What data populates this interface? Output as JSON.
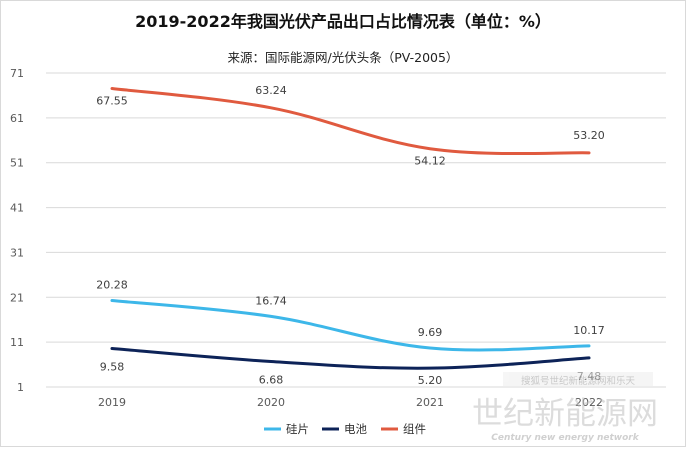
{
  "chart_data": {
    "type": "line",
    "title": "2019-2022年我国光伏产品出口占比情况表（单位：%）",
    "subtitle": "来源：国际能源网/光伏头条（PV-2005）",
    "xlabel": "",
    "ylabel": "",
    "categories": [
      "2019",
      "2020",
      "2021",
      "2022"
    ],
    "ylim": [
      1,
      71
    ],
    "yticks": [
      "71",
      "61",
      "51",
      "41",
      "31",
      "21",
      "11",
      "1"
    ],
    "grid": true,
    "legend_position": "bottom",
    "series": [
      {
        "name": "硅片",
        "color": "#3db7e9",
        "values": [
          20.28,
          16.74,
          9.69,
          10.17
        ],
        "labels": [
          "20.28",
          "16.74",
          "9.69",
          "10.17"
        ],
        "label_position": "above"
      },
      {
        "name": "电池",
        "color": "#0d2358",
        "values": [
          9.58,
          6.68,
          5.2,
          7.48
        ],
        "labels": [
          "9.58",
          "6.68",
          "5.20",
          "7.48"
        ],
        "label_position": "below"
      },
      {
        "name": "组件",
        "color": "#e05a3f",
        "values": [
          67.55,
          63.24,
          54.12,
          53.2
        ],
        "labels": [
          "67.55",
          "63.24",
          "54.12",
          "53.20"
        ],
        "label_position": "mixed"
      }
    ]
  },
  "watermark": {
    "brand": "世纪新能源网",
    "brand_en": "Century new energy network",
    "badge_text": "搜狐号世纪新能源网和乐天"
  }
}
